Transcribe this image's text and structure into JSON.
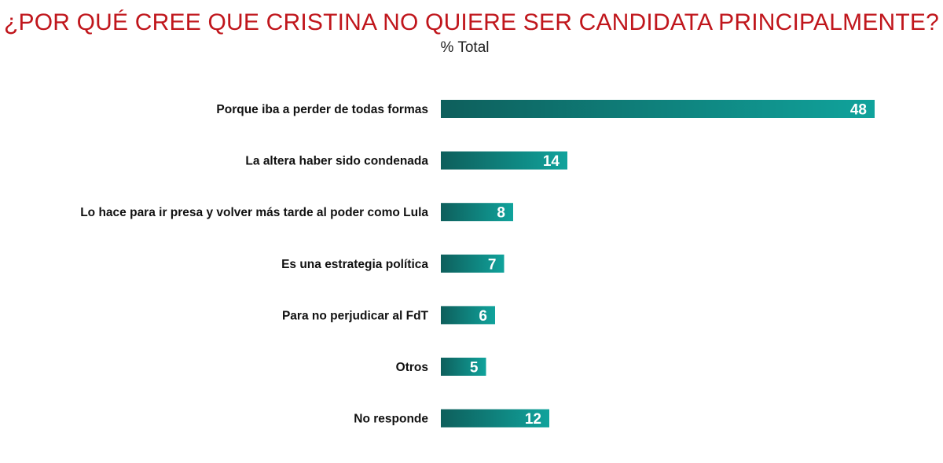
{
  "colors": {
    "title": "#c0161c",
    "bar_dark": "#0e5f5c",
    "bar_light": "#10a39c",
    "value_text": "#ffffff"
  },
  "chart_data": {
    "type": "bar",
    "orientation": "horizontal",
    "title": "¿POR QUÉ CREE QUE CRISTINA NO QUIERE SER CANDIDATA PRINCIPALMENTE?",
    "subtitle": "% Total",
    "categories": [
      "Porque iba a perder de todas formas",
      "La altera haber sido condenada",
      "Lo hace para ir presa y volver más tarde al poder como Lula",
      "Es una estrategia política",
      "Para no perjudicar al FdT",
      "Otros",
      "No responde"
    ],
    "values": [
      48,
      14,
      8,
      7,
      6,
      5,
      12
    ],
    "xlim": [
      0,
      48
    ],
    "grid": false,
    "legend": "none",
    "data_labels": "inside-end"
  }
}
